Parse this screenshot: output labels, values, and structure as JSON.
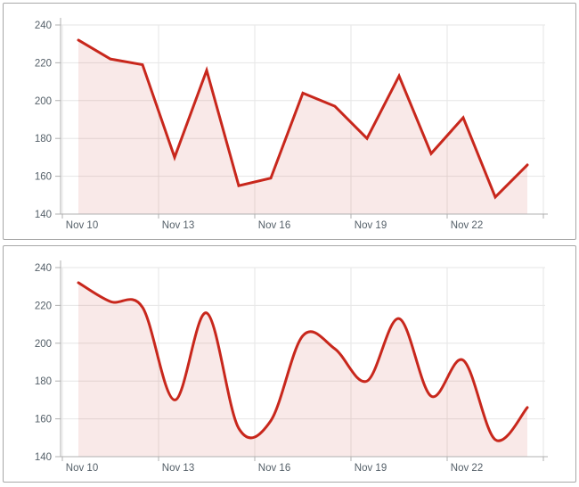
{
  "style": {
    "page_background": "#ffffff",
    "panel_background": "#ffffff",
    "panel_border_color": "#a8a8a8",
    "grid_color": "#e6e6e6",
    "axis_color": "#b0b0b0",
    "tick_label_color": "#556069",
    "line_color": "#c8271c",
    "area_fill_color": "rgba(200, 39, 28, 0.10)"
  },
  "chart_data": [
    {
      "type": "line",
      "title": "",
      "xlabel": "",
      "ylabel": "",
      "x": [
        "Nov 10",
        "Nov 11",
        "Nov 12",
        "Nov 13",
        "Nov 14",
        "Nov 15",
        "Nov 16",
        "Nov 17",
        "Nov 18",
        "Nov 19",
        "Nov 20",
        "Nov 21",
        "Nov 22",
        "Nov 23",
        "Nov 24"
      ],
      "values": [
        232,
        222,
        219,
        170,
        216,
        155,
        159,
        204,
        197,
        180,
        213,
        172,
        191,
        149,
        166
      ],
      "ylim": [
        140,
        240
      ],
      "yticks": [
        140,
        160,
        180,
        200,
        220,
        240
      ],
      "xticks": [
        {
          "label": "Nov 10",
          "index": 0
        },
        {
          "label": "Nov 13",
          "index": 3
        },
        {
          "label": "Nov 16",
          "index": 6
        },
        {
          "label": "Nov 19",
          "index": 9
        },
        {
          "label": "Nov 22",
          "index": 12
        }
      ],
      "grid": true,
      "legend": "none",
      "area_fill": true
    },
    {
      "type": "spline",
      "title": "",
      "xlabel": "",
      "ylabel": "",
      "x": [
        "Nov 10",
        "Nov 11",
        "Nov 12",
        "Nov 13",
        "Nov 14",
        "Nov 15",
        "Nov 16",
        "Nov 17",
        "Nov 18",
        "Nov 19",
        "Nov 20",
        "Nov 21",
        "Nov 22",
        "Nov 23",
        "Nov 24"
      ],
      "values": [
        232,
        222,
        219,
        170,
        216,
        155,
        159,
        204,
        197,
        180,
        213,
        172,
        191,
        149,
        166
      ],
      "ylim": [
        140,
        240
      ],
      "yticks": [
        140,
        160,
        180,
        200,
        220,
        240
      ],
      "xticks": [
        {
          "label": "Nov 10",
          "index": 0
        },
        {
          "label": "Nov 13",
          "index": 3
        },
        {
          "label": "Nov 16",
          "index": 6
        },
        {
          "label": "Nov 19",
          "index": 9
        },
        {
          "label": "Nov 22",
          "index": 12
        }
      ],
      "grid": true,
      "legend": "none",
      "area_fill": true
    }
  ]
}
